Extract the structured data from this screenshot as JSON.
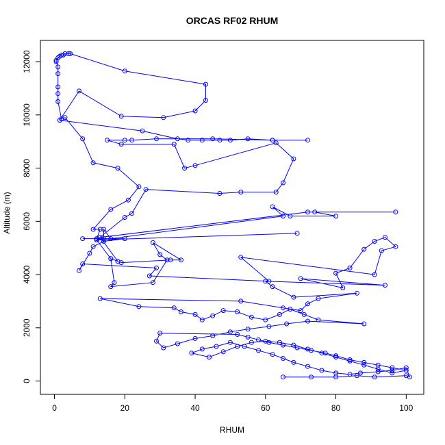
{
  "chart_data": {
    "type": "line",
    "title": "ORCAS RF02 RHUM",
    "xlabel": "RHUM",
    "ylabel": "Altitude (m)",
    "xlim": [
      -4,
      105
    ],
    "ylim": [
      -500,
      12800
    ],
    "xticks": [
      0,
      20,
      40,
      60,
      80,
      100
    ],
    "yticks": [
      0,
      2000,
      4000,
      6000,
      8000,
      10000,
      12000
    ],
    "grid": false,
    "legend": "none",
    "color": "#0000ff",
    "series": [
      {
        "marker": "open-circle",
        "points": [
          [
            65,
            150
          ],
          [
            73,
            150
          ],
          [
            80,
            150
          ],
          [
            86,
            200
          ],
          [
            91,
            150
          ],
          [
            100,
            200
          ],
          [
            101,
            150
          ],
          [
            100,
            500
          ],
          [
            96,
            400
          ],
          [
            92,
            350
          ],
          [
            87,
            300
          ],
          [
            84,
            250
          ],
          [
            80,
            300
          ],
          [
            76,
            400
          ],
          [
            72,
            550
          ],
          [
            68,
            700
          ],
          [
            65,
            850
          ],
          [
            62,
            1000
          ],
          [
            58,
            1150
          ],
          [
            54,
            1300
          ],
          [
            50,
            1450
          ],
          [
            46,
            1300
          ],
          [
            42,
            1200
          ],
          [
            39,
            1050
          ],
          [
            44,
            900
          ],
          [
            48,
            1100
          ],
          [
            52,
            1300
          ],
          [
            56,
            1450
          ],
          [
            60,
            1500
          ],
          [
            64,
            1450
          ],
          [
            68,
            1350
          ],
          [
            72,
            1200
          ],
          [
            76,
            1050
          ],
          [
            80,
            900
          ],
          [
            84,
            750
          ],
          [
            88,
            600
          ],
          [
            92,
            450
          ],
          [
            96,
            300
          ],
          [
            100,
            400
          ],
          [
            96,
            500
          ],
          [
            92,
            600
          ],
          [
            88,
            700
          ],
          [
            84,
            800
          ],
          [
            80,
            950
          ],
          [
            77,
            1050
          ],
          [
            73,
            1150
          ],
          [
            69,
            1250
          ],
          [
            65,
            1350
          ],
          [
            61,
            1450
          ],
          [
            58,
            1550
          ],
          [
            55,
            1650
          ],
          [
            52,
            1750
          ],
          [
            30,
            1800
          ],
          [
            29,
            1500
          ],
          [
            31,
            1250
          ],
          [
            35,
            1400
          ],
          [
            40,
            1600
          ],
          [
            45,
            1700
          ],
          [
            50,
            1850
          ],
          [
            55,
            1950
          ],
          [
            61,
            2050
          ],
          [
            66,
            2150
          ],
          [
            72,
            2250
          ],
          [
            88,
            2150
          ],
          [
            75,
            2300
          ],
          [
            71,
            2500
          ],
          [
            67,
            2700
          ],
          [
            64,
            2500
          ],
          [
            60,
            2300
          ],
          [
            56,
            2400
          ],
          [
            52,
            2600
          ],
          [
            48,
            2650
          ],
          [
            45,
            2450
          ],
          [
            42,
            2300
          ],
          [
            40,
            2500
          ],
          [
            36,
            2600
          ],
          [
            34,
            2750
          ],
          [
            24,
            2800
          ],
          [
            13,
            3100
          ],
          [
            53,
            3000
          ],
          [
            65,
            2750
          ],
          [
            70,
            2650
          ],
          [
            72,
            2900
          ],
          [
            75,
            3100
          ],
          [
            86,
            3300
          ],
          [
            68,
            3150
          ],
          [
            62,
            3550
          ],
          [
            60,
            3750
          ],
          [
            94,
            3600
          ],
          [
            70,
            3850
          ],
          [
            82,
            3500
          ],
          [
            80,
            4050
          ],
          [
            84,
            4250
          ],
          [
            88,
            4950
          ],
          [
            91,
            5250
          ],
          [
            94,
            5400
          ],
          [
            97,
            5050
          ],
          [
            93,
            4900
          ],
          [
            91,
            4000
          ],
          [
            53,
            4650
          ],
          [
            61,
            3750
          ],
          [
            27,
            3950
          ],
          [
            29,
            4250
          ],
          [
            8,
            4400
          ],
          [
            7,
            4150
          ],
          [
            10,
            4800
          ],
          [
            11,
            5050
          ],
          [
            14,
            5250
          ],
          [
            20,
            5350
          ],
          [
            8,
            5350
          ],
          [
            12,
            5350
          ],
          [
            13,
            5700
          ],
          [
            11,
            5700
          ],
          [
            16,
            6450
          ],
          [
            21,
            6800
          ],
          [
            24,
            7300
          ],
          [
            18,
            8000
          ],
          [
            11,
            8200
          ],
          [
            8,
            9100
          ],
          [
            3,
            9900
          ],
          [
            2,
            9850
          ],
          [
            1,
            10500
          ],
          [
            1,
            10800
          ],
          [
            1,
            11050
          ],
          [
            1,
            11550
          ],
          [
            1,
            11800
          ],
          [
            0.5,
            12000
          ],
          [
            0.5,
            12050
          ],
          [
            1,
            12150
          ],
          [
            1.5,
            12200
          ],
          [
            2,
            12250
          ],
          [
            2.5,
            12250
          ],
          [
            3,
            12300
          ],
          [
            4,
            12300
          ],
          [
            4.5,
            12300
          ],
          [
            20,
            11650
          ],
          [
            43,
            11150
          ],
          [
            43,
            10550
          ],
          [
            40,
            10150
          ],
          [
            31,
            9900
          ],
          [
            19,
            9950
          ],
          [
            7,
            10900
          ],
          [
            1.5,
            9800
          ],
          [
            25,
            9400
          ],
          [
            35,
            9100
          ],
          [
            38,
            9050
          ],
          [
            42,
            9050
          ],
          [
            47,
            9050
          ],
          [
            50,
            9050
          ],
          [
            55,
            9100
          ],
          [
            62,
            9050
          ],
          [
            72,
            9050
          ],
          [
            62,
            9050
          ],
          [
            45,
            9100
          ],
          [
            29,
            9100
          ],
          [
            22,
            9050
          ],
          [
            20,
            9050
          ],
          [
            15,
            9050
          ],
          [
            19,
            8900
          ],
          [
            34,
            8900
          ],
          [
            37,
            8000
          ],
          [
            40,
            8100
          ],
          [
            63,
            8950
          ],
          [
            68,
            8350
          ],
          [
            65,
            7450
          ],
          [
            63,
            7100
          ],
          [
            53,
            7100
          ],
          [
            47,
            7050
          ],
          [
            26,
            7200
          ],
          [
            22,
            6300
          ],
          [
            20,
            6150
          ],
          [
            12,
            5300
          ],
          [
            14,
            5350
          ],
          [
            14,
            5700
          ],
          [
            16,
            5350
          ],
          [
            65,
            6200
          ],
          [
            62,
            6550
          ],
          [
            67,
            6200
          ],
          [
            80,
            6200
          ],
          [
            74,
            6350
          ],
          [
            97,
            6350
          ],
          [
            72,
            6350
          ],
          [
            13,
            5400
          ],
          [
            18,
            4500
          ],
          [
            16,
            4600
          ],
          [
            19,
            4450
          ],
          [
            33,
            4550
          ],
          [
            36,
            4550
          ],
          [
            28,
            5200
          ],
          [
            30,
            4750
          ],
          [
            32,
            4550
          ],
          [
            28,
            3700
          ],
          [
            16,
            3550
          ],
          [
            17,
            3700
          ],
          [
            16,
            4600
          ],
          [
            12,
            5300
          ],
          [
            69,
            5550
          ]
        ]
      }
    ]
  }
}
